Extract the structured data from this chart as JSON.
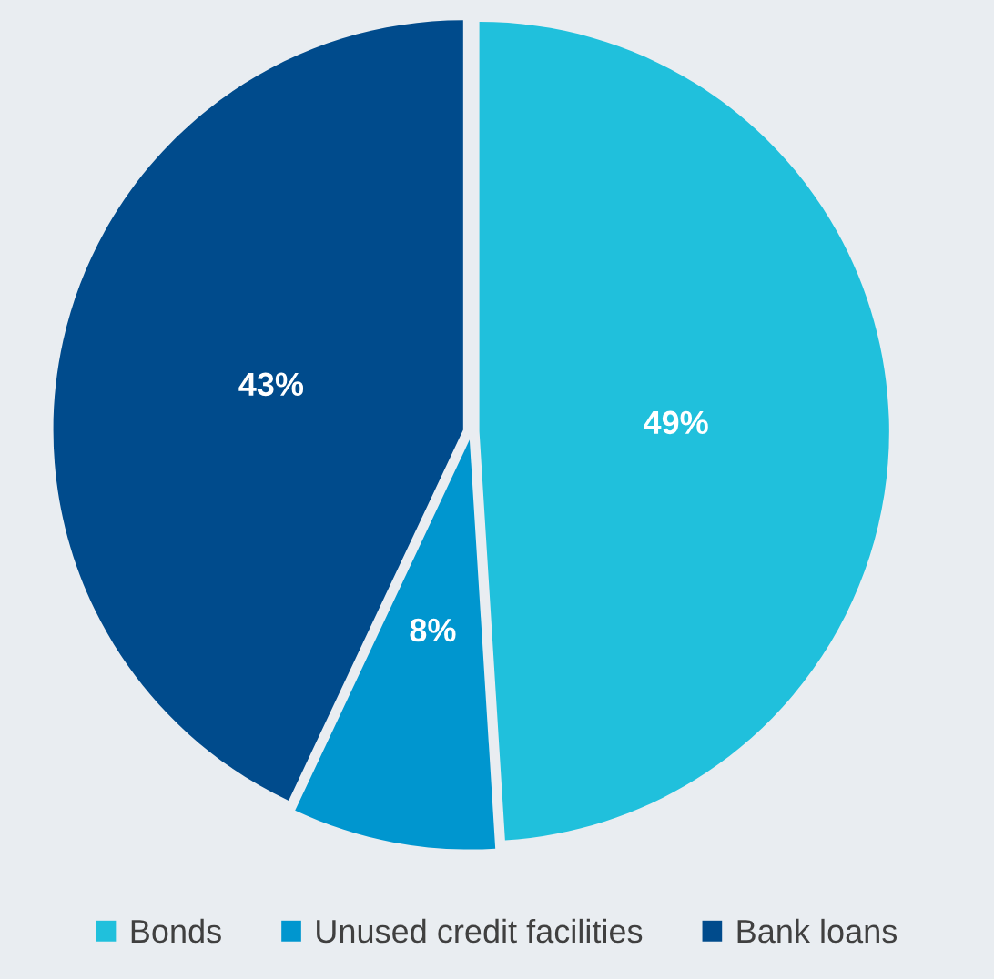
{
  "chart_data": {
    "type": "pie",
    "categories": [
      "Bonds",
      "Unused credit facilities",
      "Bank loans"
    ],
    "values": [
      49,
      8,
      43
    ],
    "colors": [
      "#20c0dc",
      "#0096cf",
      "#004b8c"
    ],
    "value_labels": [
      "49%",
      "8%",
      "43%"
    ],
    "legend": "bottom"
  }
}
